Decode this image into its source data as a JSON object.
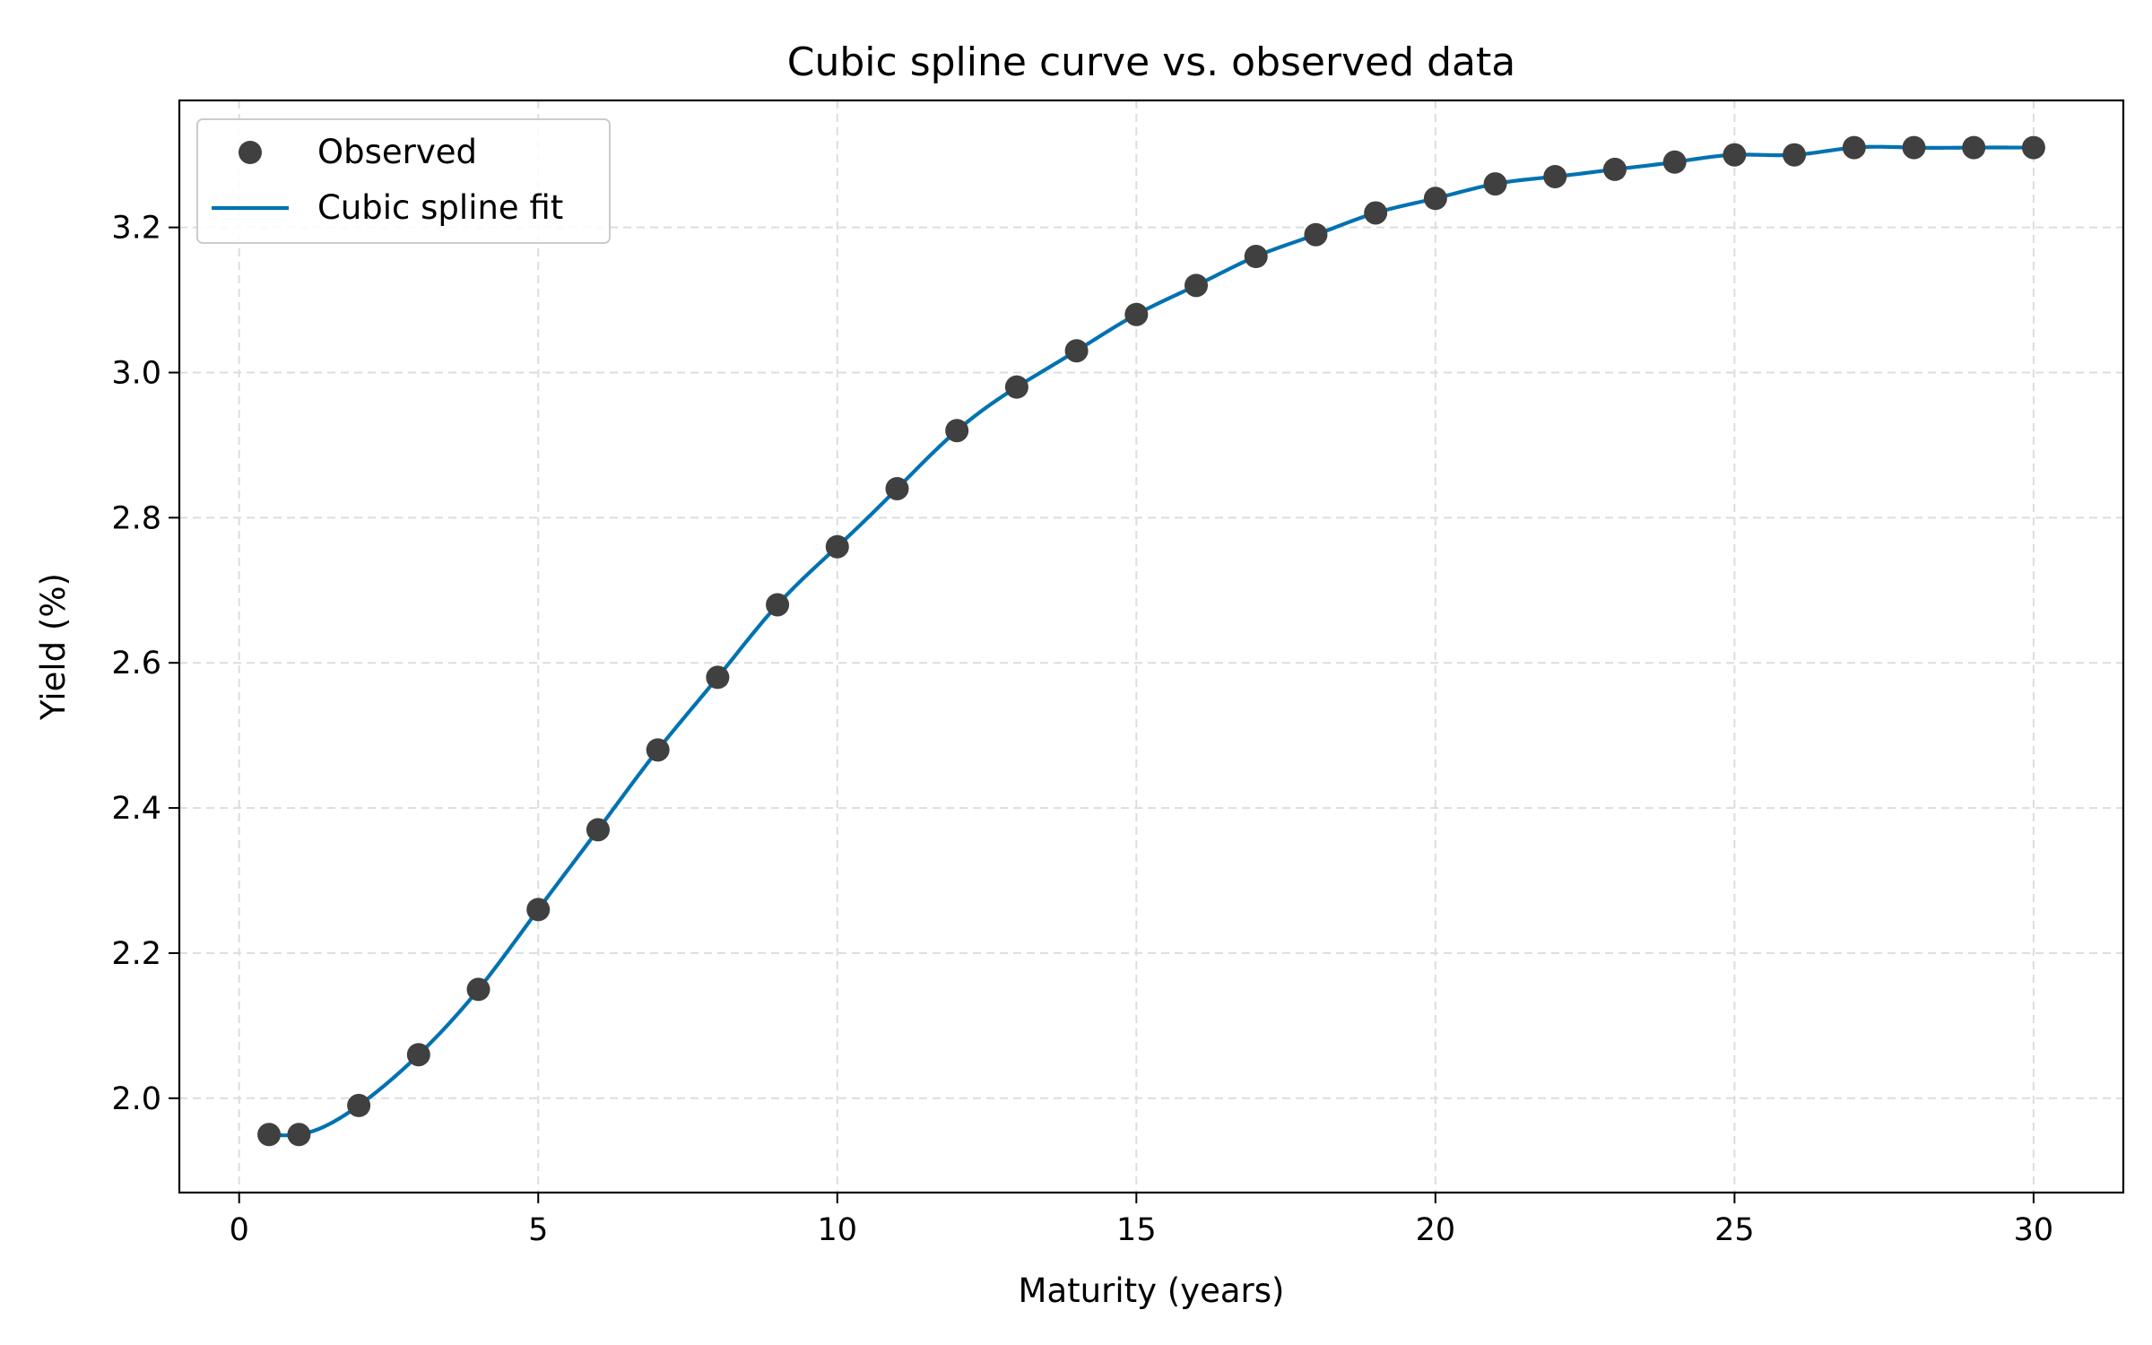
{
  "chart_data": {
    "type": "scatter",
    "title": "Cubic spline curve vs. observed data",
    "xlabel": "Maturity (years)",
    "ylabel": "Yield (%)",
    "xlim": [
      -1.0,
      31.5
    ],
    "ylim": [
      1.87,
      3.375
    ],
    "xticks": [
      0,
      5,
      10,
      15,
      20,
      25,
      30
    ],
    "xtick_labels": [
      "0",
      "5",
      "10",
      "15",
      "20",
      "25",
      "30"
    ],
    "yticks": [
      2.0,
      2.2,
      2.4,
      2.6,
      2.8,
      3.0,
      3.2
    ],
    "ytick_labels": [
      "2.0",
      "2.2",
      "2.4",
      "2.6",
      "2.8",
      "3.0",
      "3.2"
    ],
    "grid": true,
    "legend": {
      "location": "upper-left",
      "entries": [
        "Observed",
        "Cubic spline fit"
      ]
    },
    "series": [
      {
        "name": "Observed",
        "kind": "scatter",
        "color": "#404040",
        "x": [
          0.5,
          1,
          2,
          3,
          4,
          5,
          6,
          7,
          8,
          9,
          10,
          11,
          12,
          13,
          14,
          15,
          16,
          17,
          18,
          19,
          20,
          21,
          22,
          23,
          24,
          25,
          26,
          27,
          28,
          29,
          30
        ],
        "y": [
          1.95,
          1.95,
          1.99,
          2.06,
          2.15,
          2.26,
          2.37,
          2.48,
          2.58,
          2.68,
          2.76,
          2.84,
          2.92,
          2.98,
          3.03,
          3.08,
          3.12,
          3.16,
          3.19,
          3.22,
          3.24,
          3.26,
          3.27,
          3.28,
          3.29,
          3.3,
          3.3,
          3.31,
          3.31,
          3.31,
          3.31
        ]
      },
      {
        "name": "Cubic spline fit",
        "kind": "line",
        "color": "#0072B2"
      }
    ]
  }
}
